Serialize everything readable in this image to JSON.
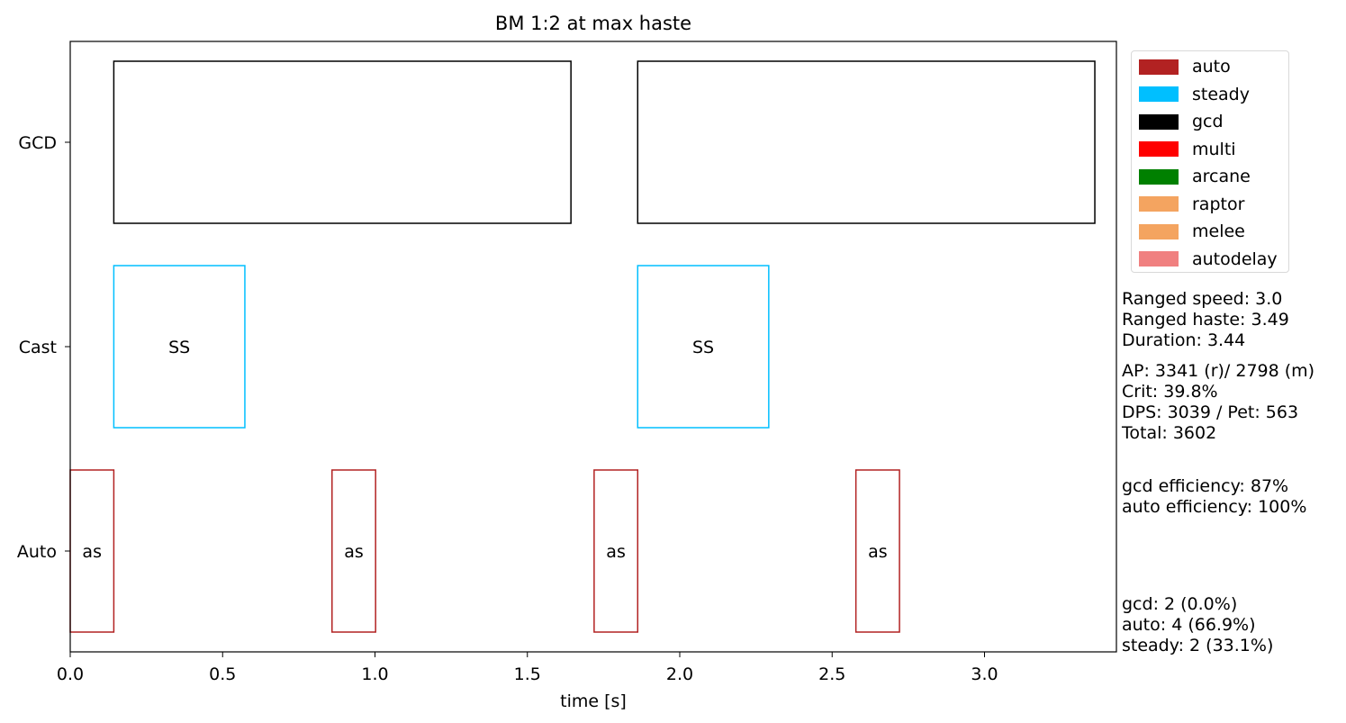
{
  "chart_data": {
    "type": "timeline",
    "title": "BM 1:2 at max haste",
    "xlabel": "time [s]",
    "xlim": [
      0.0,
      3.44
    ],
    "xticks": [
      "0.0",
      "0.5",
      "1.0",
      "1.5",
      "2.0",
      "2.5",
      "3.0"
    ],
    "xtick_values": [
      0.0,
      0.5,
      1.0,
      1.5,
      2.0,
      2.5,
      3.0
    ],
    "rows": [
      "GCD",
      "Cast",
      "Auto"
    ],
    "bars": [
      {
        "row": "GCD",
        "start": 0.143,
        "end": 1.643,
        "kind": "gcd",
        "label": ""
      },
      {
        "row": "GCD",
        "start": 1.862,
        "end": 3.362,
        "kind": "gcd",
        "label": ""
      },
      {
        "row": "Cast",
        "start": 0.143,
        "end": 0.573,
        "kind": "steady",
        "label": "SS"
      },
      {
        "row": "Cast",
        "start": 1.862,
        "end": 2.292,
        "kind": "steady",
        "label": "SS"
      },
      {
        "row": "Auto",
        "start": 0.0,
        "end": 0.143,
        "kind": "auto",
        "label": "as"
      },
      {
        "row": "Auto",
        "start": 0.859,
        "end": 1.002,
        "kind": "auto",
        "label": "as"
      },
      {
        "row": "Auto",
        "start": 1.719,
        "end": 1.862,
        "kind": "auto",
        "label": "as"
      },
      {
        "row": "Auto",
        "start": 2.578,
        "end": 2.721,
        "kind": "auto",
        "label": "as"
      }
    ],
    "legend": [
      {
        "label": "auto",
        "color": "#b22222"
      },
      {
        "label": "steady",
        "color": "#00bfff"
      },
      {
        "label": "gcd",
        "color": "#000000"
      },
      {
        "label": "multi",
        "color": "#ff0000"
      },
      {
        "label": "arcane",
        "color": "#008000"
      },
      {
        "label": "raptor",
        "color": "#f4a460"
      },
      {
        "label": "melee",
        "color": "#f4a460"
      },
      {
        "label": "autodelay",
        "color": "#f08080"
      }
    ],
    "colors": {
      "gcd": "#000000",
      "steady": "#00bfff",
      "auto": "#b22222"
    },
    "legend_position": "upper-right-outside"
  },
  "stats": {
    "block1": [
      "Ranged speed: 3.0",
      "Ranged haste: 3.49",
      "Duration: 3.44"
    ],
    "block2": [
      "AP: 3341 (r)/ 2798 (m)",
      "Crit: 39.8%",
      "DPS: 3039 / Pet: 563",
      "Total: 3602"
    ],
    "block3": [
      "gcd efficiency: 87%",
      "auto efficiency: 100%"
    ],
    "block4": [
      "gcd: 2 (0.0%)",
      "auto: 4 (66.9%)",
      "steady: 2 (33.1%)"
    ]
  }
}
